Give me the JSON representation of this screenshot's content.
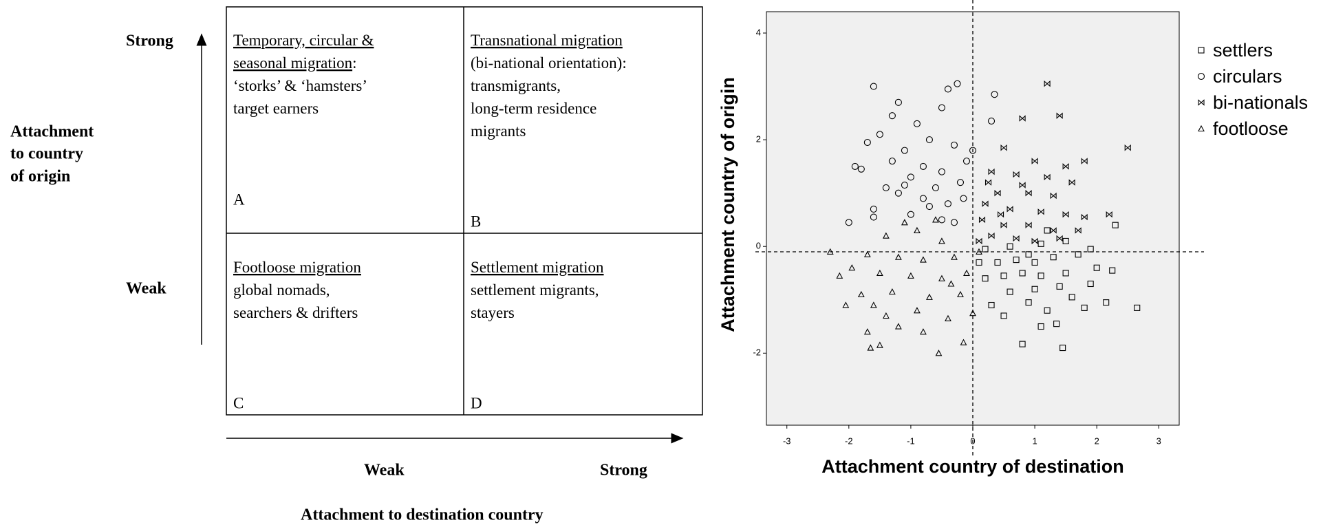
{
  "diagram": {
    "y_axis_title": [
      "Attachment",
      "to country",
      "of origin"
    ],
    "y_high": "Strong",
    "y_low": "Weak",
    "x_axis_title": "Attachment to destination country",
    "x_low": "Weak",
    "x_high": "Strong",
    "cells": [
      {
        "letter": "A",
        "lines": [
          [
            {
              "text": "Temporary, circular &",
              "underline": true
            }
          ],
          [
            {
              "text": "seasonal migration",
              "underline": true
            },
            {
              "text": ":",
              "underline": false
            }
          ],
          [
            {
              "text": "‘storks’ & ‘hamsters’",
              "underline": false
            }
          ],
          [
            {
              "text": "target earners",
              "underline": false
            }
          ]
        ]
      },
      {
        "letter": "B",
        "lines": [
          [
            {
              "text": "Transnational migration",
              "underline": true
            }
          ],
          [
            {
              "text": "(bi-national orientation):",
              "underline": false
            }
          ],
          [
            {
              "text": "transmigrants,",
              "underline": false
            }
          ],
          [
            {
              "text": "long-term residence",
              "underline": false
            }
          ],
          [
            {
              "text": "migrants",
              "underline": false
            }
          ]
        ]
      },
      {
        "letter": "C",
        "lines": [
          [
            {
              "text": "Footloose migration",
              "underline": true
            }
          ],
          [
            {
              "text": "global nomads,",
              "underline": false
            }
          ],
          [
            {
              "text": "searchers & drifters",
              "underline": false
            }
          ]
        ]
      },
      {
        "letter": "D",
        "lines": [
          [
            {
              "text": "Settlement migration",
              "underline": true
            }
          ],
          [
            {
              "text": "settlement migrants,",
              "underline": false
            }
          ],
          [
            {
              "text": "stayers",
              "underline": false
            }
          ]
        ]
      }
    ]
  },
  "chart_data": {
    "type": "scatter",
    "xlabel": "Attachment country of destination",
    "ylabel": "Attachment country of origin",
    "xlim": [
      -3.33,
      3.33
    ],
    "ylim": [
      -3.35,
      4.4
    ],
    "xticks": [
      -3,
      -2,
      -1,
      0,
      1,
      2,
      3
    ],
    "yticks": [
      -2,
      0,
      2,
      4
    ],
    "reference_lines": {
      "x": 0,
      "y": -0.1
    },
    "legend": "right",
    "series": [
      {
        "name": "settlers",
        "marker": "square",
        "color": "#000000",
        "values": [
          [
            1.45,
            -1.9
          ],
          [
            0.8,
            -1.83
          ],
          [
            1.1,
            -1.5
          ],
          [
            1.35,
            -1.45
          ],
          [
            0.5,
            -1.3
          ],
          [
            1.8,
            -1.15
          ],
          [
            2.65,
            -1.15
          ],
          [
            2.15,
            -1.05
          ],
          [
            0.3,
            -1.1
          ],
          [
            0.9,
            -1.05
          ],
          [
            1.2,
            -1.2
          ],
          [
            1.6,
            -0.95
          ],
          [
            0.6,
            -0.85
          ],
          [
            1.0,
            -0.8
          ],
          [
            1.4,
            -0.75
          ],
          [
            1.9,
            -0.7
          ],
          [
            0.2,
            -0.6
          ],
          [
            0.5,
            -0.55
          ],
          [
            0.8,
            -0.5
          ],
          [
            1.1,
            -0.55
          ],
          [
            1.5,
            -0.5
          ],
          [
            2.0,
            -0.4
          ],
          [
            2.25,
            -0.45
          ],
          [
            0.1,
            -0.3
          ],
          [
            0.4,
            -0.3
          ],
          [
            0.7,
            -0.25
          ],
          [
            1.0,
            -0.3
          ],
          [
            1.3,
            -0.2
          ],
          [
            1.7,
            -0.15
          ],
          [
            0.2,
            -0.05
          ],
          [
            0.6,
            0.0
          ],
          [
            1.1,
            0.05
          ],
          [
            1.5,
            0.1
          ],
          [
            1.9,
            -0.05
          ],
          [
            2.3,
            0.4
          ],
          [
            1.2,
            0.3
          ],
          [
            0.9,
            -0.15
          ]
        ]
      },
      {
        "name": "circulars",
        "marker": "circle",
        "color": "#000000",
        "values": [
          [
            -1.6,
            3.0
          ],
          [
            -0.4,
            2.95
          ],
          [
            -0.25,
            3.05
          ],
          [
            -1.2,
            2.7
          ],
          [
            -0.5,
            2.6
          ],
          [
            -1.3,
            2.45
          ],
          [
            -0.9,
            2.3
          ],
          [
            -1.5,
            2.1
          ],
          [
            -1.7,
            1.95
          ],
          [
            -0.7,
            2.0
          ],
          [
            -1.1,
            1.8
          ],
          [
            -0.3,
            1.9
          ],
          [
            -1.9,
            1.5
          ],
          [
            -1.3,
            1.6
          ],
          [
            -0.8,
            1.5
          ],
          [
            -0.5,
            1.4
          ],
          [
            -0.1,
            1.6
          ],
          [
            -1.0,
            1.3
          ],
          [
            -1.4,
            1.1
          ],
          [
            -0.6,
            1.1
          ],
          [
            -0.2,
            1.2
          ],
          [
            -1.2,
            1.0
          ],
          [
            -0.8,
            0.9
          ],
          [
            -0.4,
            0.8
          ],
          [
            -1.6,
            0.7
          ],
          [
            -2.0,
            0.45
          ],
          [
            -1.0,
            0.6
          ],
          [
            -0.5,
            0.5
          ],
          [
            -0.15,
            0.9
          ],
          [
            0.3,
            2.35
          ],
          [
            0.35,
            2.85
          ],
          [
            -1.8,
            1.45
          ],
          [
            -0.7,
            0.75
          ],
          [
            -1.1,
            1.15
          ],
          [
            -0.3,
            0.45
          ],
          [
            0.0,
            1.8
          ],
          [
            -1.6,
            0.55
          ]
        ]
      },
      {
        "name": "bi-nationals",
        "marker": "bowtie",
        "color": "#000000",
        "values": [
          [
            1.2,
            3.05
          ],
          [
            1.4,
            2.45
          ],
          [
            2.5,
            1.85
          ],
          [
            0.8,
            2.4
          ],
          [
            0.5,
            1.85
          ],
          [
            1.0,
            1.6
          ],
          [
            1.5,
            1.5
          ],
          [
            1.8,
            1.6
          ],
          [
            0.3,
            1.4
          ],
          [
            0.7,
            1.35
          ],
          [
            1.2,
            1.3
          ],
          [
            1.6,
            1.2
          ],
          [
            0.4,
            1.0
          ],
          [
            0.9,
            1.0
          ],
          [
            1.3,
            0.95
          ],
          [
            0.2,
            0.8
          ],
          [
            0.6,
            0.7
          ],
          [
            1.1,
            0.65
          ],
          [
            1.5,
            0.6
          ],
          [
            2.2,
            0.6
          ],
          [
            0.15,
            0.5
          ],
          [
            0.5,
            0.4
          ],
          [
            0.9,
            0.4
          ],
          [
            1.3,
            0.3
          ],
          [
            1.7,
            0.3
          ],
          [
            0.3,
            0.2
          ],
          [
            0.7,
            0.15
          ],
          [
            1.0,
            0.1
          ],
          [
            0.1,
            0.1
          ],
          [
            1.8,
            0.55
          ],
          [
            0.45,
            0.6
          ],
          [
            1.4,
            0.15
          ],
          [
            0.8,
            1.15
          ],
          [
            0.25,
            1.2
          ]
        ]
      },
      {
        "name": "footloose",
        "marker": "triangle",
        "color": "#000000",
        "values": [
          [
            -2.15,
            -0.55
          ],
          [
            -1.65,
            -1.9
          ],
          [
            -1.5,
            -1.85
          ],
          [
            -0.55,
            -2.0
          ],
          [
            -0.15,
            -1.8
          ],
          [
            -1.7,
            -1.6
          ],
          [
            -1.2,
            -1.5
          ],
          [
            -0.8,
            -1.6
          ],
          [
            -2.05,
            -1.1
          ],
          [
            -1.4,
            -1.3
          ],
          [
            -0.9,
            -1.2
          ],
          [
            -0.4,
            -1.35
          ],
          [
            0.0,
            -1.25
          ],
          [
            -1.8,
            -0.9
          ],
          [
            -1.3,
            -0.85
          ],
          [
            -0.7,
            -0.95
          ],
          [
            -0.2,
            -0.9
          ],
          [
            -1.95,
            -0.4
          ],
          [
            -1.5,
            -0.5
          ],
          [
            -1.0,
            -0.55
          ],
          [
            -0.5,
            -0.6
          ],
          [
            -0.1,
            -0.5
          ],
          [
            -1.7,
            -0.15
          ],
          [
            -1.2,
            -0.2
          ],
          [
            -0.8,
            -0.25
          ],
          [
            -0.3,
            -0.2
          ],
          [
            0.1,
            -0.1
          ],
          [
            -1.4,
            0.2
          ],
          [
            -0.9,
            0.3
          ],
          [
            -0.5,
            0.1
          ],
          [
            -1.1,
            0.45
          ],
          [
            -0.6,
            0.5
          ],
          [
            -2.3,
            -0.1
          ],
          [
            -1.6,
            -1.1
          ],
          [
            -0.35,
            -0.7
          ]
        ]
      }
    ]
  }
}
